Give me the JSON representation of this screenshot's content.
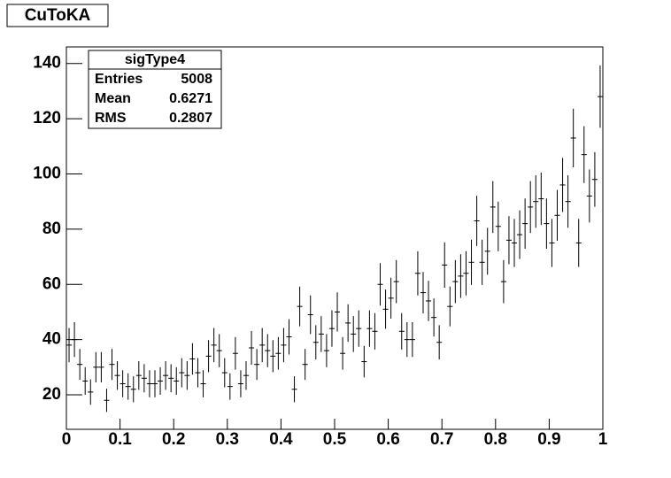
{
  "chart_data": {
    "type": "histogram",
    "title": "CuToKA",
    "stats": {
      "name": "sigType4",
      "rows": [
        [
          "Entries",
          "5008"
        ],
        [
          "Mean",
          "0.6271"
        ],
        [
          "RMS",
          "0.2807"
        ]
      ]
    },
    "bins": [
      0,
      0.01,
      0.02,
      0.03,
      0.04,
      0.05,
      0.06,
      0.07,
      0.08,
      0.09,
      0.1,
      0.11,
      0.12,
      0.13,
      0.14,
      0.15,
      0.16,
      0.17,
      0.18,
      0.19,
      0.2,
      0.21,
      0.22,
      0.23,
      0.24,
      0.25,
      0.26,
      0.27,
      0.28,
      0.29,
      0.3,
      0.31,
      0.32,
      0.33,
      0.34,
      0.35,
      0.36,
      0.37,
      0.38,
      0.39,
      0.4,
      0.41,
      0.42,
      0.43,
      0.44,
      0.45,
      0.46,
      0.47,
      0.48,
      0.49,
      0.5,
      0.51,
      0.52,
      0.53,
      0.54,
      0.55,
      0.56,
      0.57,
      0.58,
      0.59,
      0.6,
      0.61,
      0.62,
      0.63,
      0.64,
      0.65,
      0.66,
      0.67,
      0.68,
      0.69,
      0.7,
      0.71,
      0.72,
      0.73,
      0.74,
      0.75,
      0.76,
      0.77,
      0.78,
      0.79,
      0.8,
      0.81,
      0.82,
      0.83,
      0.84,
      0.85,
      0.86,
      0.87,
      0.88,
      0.89,
      0.9,
      0.91,
      0.92,
      0.93,
      0.94,
      0.95,
      0.96,
      0.97,
      0.98,
      0.99,
      1
    ],
    "values": [
      38,
      40,
      31,
      25,
      21,
      30,
      30,
      18,
      31,
      27,
      24,
      23,
      22,
      27,
      26,
      24,
      24,
      25,
      27,
      26,
      25,
      28,
      27,
      33,
      28,
      24,
      34,
      38,
      36,
      28,
      23,
      35,
      24,
      27,
      37,
      31,
      38,
      36,
      34,
      35,
      38,
      41,
      22,
      52,
      31,
      49,
      39,
      42,
      36,
      44,
      50,
      35,
      46,
      42,
      44,
      32,
      44,
      43,
      60,
      51,
      55,
      61,
      43,
      40,
      40,
      64,
      57,
      54,
      48,
      39,
      67,
      52,
      61,
      63,
      64,
      68,
      83,
      68,
      72,
      88,
      81,
      61,
      76,
      75,
      78,
      82,
      88,
      90,
      91,
      82,
      75,
      85,
      96,
      90,
      113,
      75,
      107,
      92,
      98,
      128
    ],
    "errors": [
      6.2,
      6.3,
      5.6,
      5,
      4.6,
      5.5,
      5.5,
      4.2,
      5.6,
      5.2,
      4.9,
      4.8,
      4.7,
      5.2,
      5.1,
      4.9,
      4.9,
      5,
      5.2,
      5.1,
      5,
      5.3,
      5.2,
      5.7,
      5.3,
      4.9,
      5.8,
      6.2,
      6,
      5.3,
      4.8,
      5.9,
      4.9,
      5.2,
      6.1,
      5.6,
      6.2,
      6,
      5.8,
      5.9,
      6.2,
      6.4,
      4.7,
      7.2,
      5.6,
      7,
      6.2,
      6.5,
      6,
      6.6,
      7.1,
      5.9,
      6.8,
      6.5,
      6.6,
      5.7,
      6.6,
      6.6,
      7.7,
      7.1,
      7.4,
      7.8,
      6.6,
      6.3,
      6.3,
      8,
      7.5,
      7.3,
      6.9,
      6.2,
      8.2,
      7.2,
      7.8,
      7.9,
      8,
      8.2,
      9.1,
      8.2,
      8.5,
      9.4,
      9,
      7.8,
      8.7,
      8.7,
      8.8,
      9.1,
      9.4,
      9.5,
      9.5,
      9.1,
      8.7,
      9.2,
      9.8,
      9.5,
      10.6,
      8.7,
      10.3,
      9.6,
      9.9,
      11.3
    ],
    "color": "#000000",
    "xlim": [
      0,
      1
    ],
    "xticks": [
      0,
      0.1,
      0.2,
      0.3,
      0.4,
      0.5,
      0.6,
      0.7,
      0.8,
      0.9,
      1
    ],
    "ylim": [
      7.5,
      146
    ],
    "yticks": [
      20,
      40,
      60,
      80,
      100,
      120,
      140
    ]
  }
}
